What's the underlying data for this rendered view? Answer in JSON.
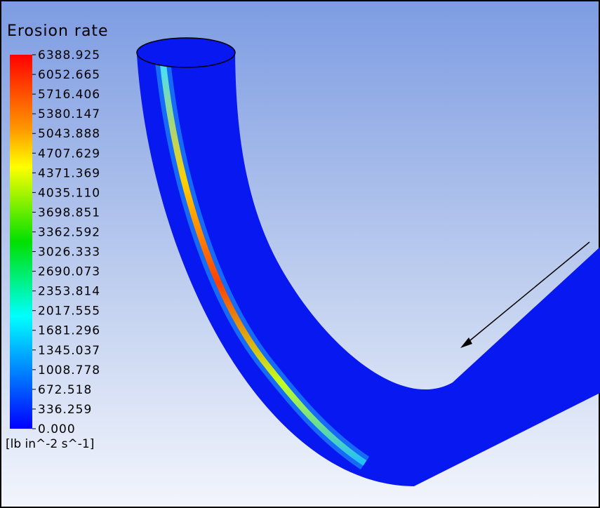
{
  "legend": {
    "title": "Erosion rate",
    "labels": [
      "6388.925",
      "6052.665",
      "5716.406",
      "5380.147",
      "5043.888",
      "4707.629",
      "4371.369",
      "4035.110",
      "3698.851",
      "3362.592",
      "3026.333",
      "2690.073",
      "2353.814",
      "2017.555",
      "1681.296",
      "1345.037",
      "1008.778",
      "672.518",
      "336.259",
      "0.000"
    ],
    "unit": "[lb in^-2 s^-1]"
  }
}
